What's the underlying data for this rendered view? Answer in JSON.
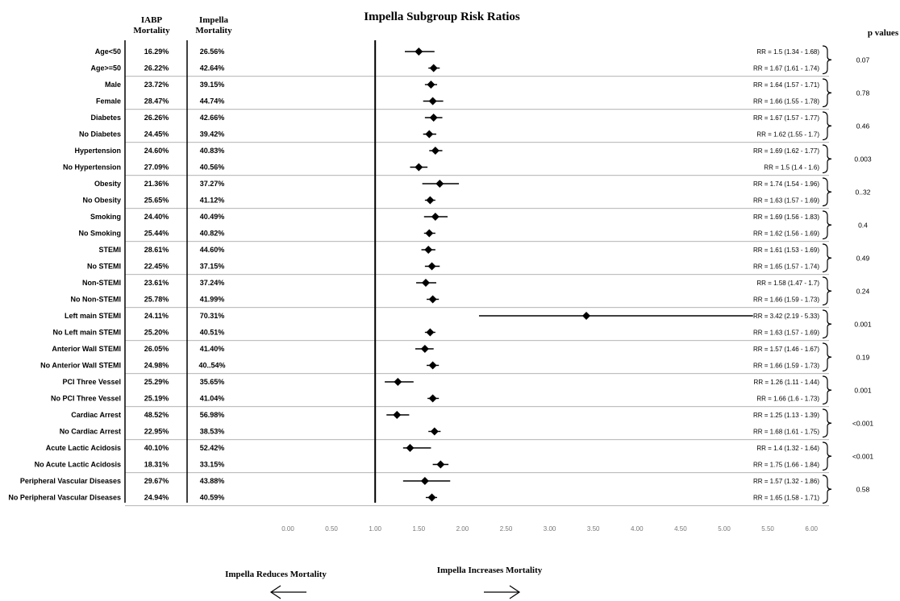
{
  "chart_data": {
    "type": "forest",
    "title": "Impella Subgroup Risk Ratios",
    "headers": {
      "iabp": "IABP Mortality",
      "impella": "Impella Mortality",
      "pvalues": "p values"
    },
    "x_ticks": [
      "0.00",
      "0.50",
      "1.00",
      "1.50",
      "2.00",
      "2.50",
      "3.00",
      "3.50",
      "4.00",
      "4.50",
      "5.00",
      "5.50",
      "6.00"
    ],
    "xlim": [
      0,
      6
    ],
    "reference_line": 1.0,
    "footer": {
      "left": "Impella Reduces Mortality",
      "right": "Impella Increases Mortality"
    },
    "rows": [
      {
        "label": "Age<50",
        "iabp": "16.29%",
        "impella": "26.56%",
        "rr": 1.5,
        "lo": 1.34,
        "hi": 1.68,
        "rr_text": "RR = 1.5 (1.34 - 1.68)"
      },
      {
        "label": "Age>=50",
        "iabp": "26.22%",
        "impella": "42.64%",
        "rr": 1.67,
        "lo": 1.61,
        "hi": 1.74,
        "rr_text": "RR = 1.67 (1.61 - 1.74)"
      },
      {
        "label": "Male",
        "iabp": "23.72%",
        "impella": "39.15%",
        "rr": 1.64,
        "lo": 1.57,
        "hi": 1.71,
        "rr_text": "RR = 1.64 (1.57 - 1.71)"
      },
      {
        "label": "Female",
        "iabp": "28.47%",
        "impella": "44.74%",
        "rr": 1.66,
        "lo": 1.55,
        "hi": 1.78,
        "rr_text": "RR = 1.66 (1.55 - 1.78)"
      },
      {
        "label": "Diabetes",
        "iabp": "26.26%",
        "impella": "42.66%",
        "rr": 1.67,
        "lo": 1.57,
        "hi": 1.77,
        "rr_text": "RR = 1.67 (1.57 - 1.77)"
      },
      {
        "label": "No Diabetes",
        "iabp": "24.45%",
        "impella": "39.42%",
        "rr": 1.62,
        "lo": 1.55,
        "hi": 1.7,
        "rr_text": "RR = 1.62 (1.55 - 1.7)"
      },
      {
        "label": "Hypertension",
        "iabp": "24.60%",
        "impella": "40.83%",
        "rr": 1.69,
        "lo": 1.62,
        "hi": 1.77,
        "rr_text": "RR = 1.69 (1.62 - 1.77)"
      },
      {
        "label": "No Hypertension",
        "iabp": "27.09%",
        "impella": "40.56%",
        "rr": 1.5,
        "lo": 1.4,
        "hi": 1.6,
        "rr_text": "RR = 1.5 (1.4 - 1.6)"
      },
      {
        "label": "Obesity",
        "iabp": "21.36%",
        "impella": "37.27%",
        "rr": 1.74,
        "lo": 1.54,
        "hi": 1.96,
        "rr_text": "RR = 1.74 (1.54 - 1.96)"
      },
      {
        "label": "No Obesity",
        "iabp": "25.65%",
        "impella": "41.12%",
        "rr": 1.63,
        "lo": 1.57,
        "hi": 1.69,
        "rr_text": "RR = 1.63 (1.57 - 1.69)"
      },
      {
        "label": "Smoking",
        "iabp": "24.40%",
        "impella": "40.49%",
        "rr": 1.69,
        "lo": 1.56,
        "hi": 1.83,
        "rr_text": "RR = 1.69 (1.56 - 1.83)"
      },
      {
        "label": "No Smoking",
        "iabp": "25.44%",
        "impella": "40.82%",
        "rr": 1.62,
        "lo": 1.56,
        "hi": 1.69,
        "rr_text": "RR = 1.62 (1.56 - 1.69)"
      },
      {
        "label": "STEMI",
        "iabp": "28.61%",
        "impella": "44.60%",
        "rr": 1.61,
        "lo": 1.53,
        "hi": 1.69,
        "rr_text": "RR = 1.61 (1.53 - 1.69)"
      },
      {
        "label": "No STEMI",
        "iabp": "22.45%",
        "impella": "37.15%",
        "rr": 1.65,
        "lo": 1.57,
        "hi": 1.74,
        "rr_text": "RR = 1.65 (1.57 - 1.74)"
      },
      {
        "label": "Non-STEMI",
        "iabp": "23.61%",
        "impella": "37.24%",
        "rr": 1.58,
        "lo": 1.47,
        "hi": 1.7,
        "rr_text": "RR = 1.58 (1.47 - 1.7)"
      },
      {
        "label": "No Non-STEMI",
        "iabp": "25.78%",
        "impella": "41.99%",
        "rr": 1.66,
        "lo": 1.59,
        "hi": 1.73,
        "rr_text": "RR = 1.66 (1.59 - 1.73)"
      },
      {
        "label": "Left main STEMI",
        "iabp": "24.11%",
        "impella": "70.31%",
        "rr": 3.42,
        "lo": 2.19,
        "hi": 5.33,
        "rr_text": "RR = 3.42 (2.19 - 5.33)"
      },
      {
        "label": "No Left main STEMI",
        "iabp": "25.20%",
        "impella": "40.51%",
        "rr": 1.63,
        "lo": 1.57,
        "hi": 1.69,
        "rr_text": "RR = 1.63 (1.57 - 1.69)"
      },
      {
        "label": "Anterior Wall STEMI",
        "iabp": "26.05%",
        "impella": "41.40%",
        "rr": 1.57,
        "lo": 1.46,
        "hi": 1.67,
        "rr_text": "RR = 1.57 (1.46 - 1.67)"
      },
      {
        "label": "No Anterior Wall STEMI",
        "iabp": "24.98%",
        "impella": "40..54%",
        "rr": 1.66,
        "lo": 1.59,
        "hi": 1.73,
        "rr_text": "RR = 1.66 (1.59 - 1.73)"
      },
      {
        "label": "PCI Three Vessel",
        "iabp": "25.29%",
        "impella": "35.65%",
        "rr": 1.26,
        "lo": 1.11,
        "hi": 1.44,
        "rr_text": "RR = 1.26 (1.11 - 1.44)"
      },
      {
        "label": "No PCI Three Vessel",
        "iabp": "25.19%",
        "impella": "41.04%",
        "rr": 1.66,
        "lo": 1.6,
        "hi": 1.73,
        "rr_text": "RR = 1.66 (1.6 - 1.73)"
      },
      {
        "label": "Cardiac Arrest",
        "iabp": "48.52%",
        "impella": "56.98%",
        "rr": 1.25,
        "lo": 1.13,
        "hi": 1.39,
        "rr_text": "RR = 1.25 (1.13 - 1.39)"
      },
      {
        "label": "No Cardiac Arrest",
        "iabp": "22.95%",
        "impella": "38.53%",
        "rr": 1.68,
        "lo": 1.61,
        "hi": 1.75,
        "rr_text": "RR = 1.68 (1.61 - 1.75)"
      },
      {
        "label": "Acute Lactic Acidosis",
        "iabp": "40.10%",
        "impella": "52.42%",
        "rr": 1.4,
        "lo": 1.32,
        "hi": 1.64,
        "rr_text": "RR = 1.4 (1.32 - 1.64)"
      },
      {
        "label": "No Acute Lactic Acidosis",
        "iabp": "18.31%",
        "impella": "33.15%",
        "rr": 1.75,
        "lo": 1.66,
        "hi": 1.84,
        "rr_text": "RR = 1.75 (1.66 - 1.84)"
      },
      {
        "label": "Peripheral Vascular Diseases",
        "iabp": "29.67%",
        "impella": "43.88%",
        "rr": 1.57,
        "lo": 1.32,
        "hi": 1.86,
        "rr_text": "RR = 1.57 (1.32 - 1.86)"
      },
      {
        "label": "No Peripheral Vascular Diseases",
        "iabp": "24.94%",
        "impella": "40.59%",
        "rr": 1.65,
        "lo": 1.58,
        "hi": 1.71,
        "rr_text": "RR = 1.65 (1.58 - 1.71)"
      }
    ],
    "p_values": [
      "0.07",
      "0.78",
      "0.46",
      "0.003",
      "0..32",
      "0.4",
      "0.49",
      "0.24",
      "0.001",
      "0.19",
      "0.001",
      "<0.001",
      "<0.001",
      "0.58"
    ]
  }
}
